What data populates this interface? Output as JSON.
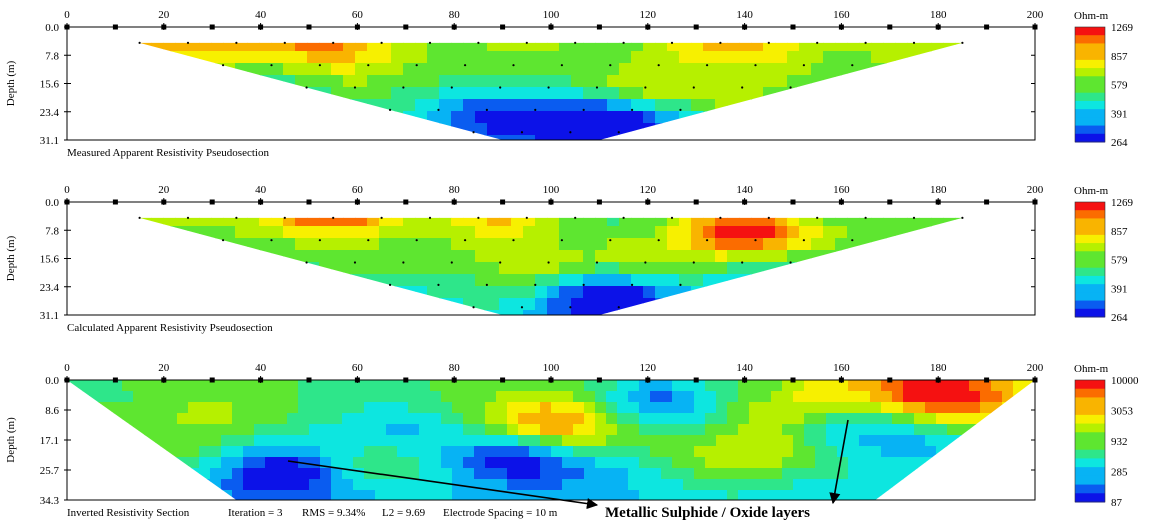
{
  "chart_data": [
    {
      "type": "heatmap",
      "title": "Measured Apparent Resistivity Pseudosection",
      "ylabel": "Depth (m)",
      "x_ticks": [
        0,
        20,
        40,
        60,
        80,
        100,
        120,
        140,
        160,
        180,
        200
      ],
      "y_ticks": [
        "0.0",
        "7.8",
        "15.6",
        "23.4",
        "31.1"
      ],
      "xlim": [
        0,
        200
      ],
      "ylim": [
        0,
        31.1
      ],
      "section_shape": "trapezoid",
      "section_top": [
        15,
        185
      ],
      "section_bottom": [
        90,
        110
      ],
      "colorbar": {
        "unit": "Ohm-m",
        "labels": [
          "1269",
          "857",
          "579",
          "391",
          "264"
        ]
      },
      "anomalies": [
        {
          "label": "high",
          "x": 55,
          "depth": 3,
          "value": 1269
        },
        {
          "label": "high",
          "x": 140,
          "depth": 8,
          "value": 1150
        },
        {
          "label": "high",
          "x": 30,
          "depth": 4,
          "value": 900
        },
        {
          "label": "low",
          "x": 110,
          "depth": 27,
          "value": 264
        },
        {
          "label": "low",
          "x": 85,
          "depth": 25,
          "value": 330
        }
      ]
    },
    {
      "type": "heatmap",
      "title": "Calculated Apparent Resistivity Pseudosection",
      "ylabel": "Depth (m)",
      "x_ticks": [
        0,
        20,
        40,
        60,
        80,
        100,
        120,
        140,
        160,
        180,
        200
      ],
      "y_ticks": [
        "0.0",
        "7.8",
        "15.6",
        "23.4",
        "31.1"
      ],
      "xlim": [
        0,
        200
      ],
      "ylim": [
        0,
        31.1
      ],
      "section_shape": "trapezoid",
      "section_top": [
        15,
        185
      ],
      "section_bottom": [
        90,
        110
      ],
      "colorbar": {
        "unit": "Ohm-m",
        "labels": [
          "1269",
          "857",
          "579",
          "391",
          "264"
        ]
      },
      "anomalies": [
        {
          "label": "high",
          "x": 55,
          "depth": 3,
          "value": 1269
        },
        {
          "label": "high",
          "x": 140,
          "depth": 8,
          "value": 1100
        },
        {
          "label": "high",
          "x": 90,
          "depth": 4,
          "value": 820
        },
        {
          "label": "low",
          "x": 110,
          "depth": 27,
          "value": 264
        }
      ]
    },
    {
      "type": "heatmap",
      "title": "Inverted Resistivity Section",
      "ylabel": "Depth (m)",
      "x_ticks": [
        0,
        20,
        40,
        60,
        80,
        100,
        120,
        140,
        160,
        180,
        200
      ],
      "y_ticks": [
        "0.0",
        "8.6",
        "17.1",
        "25.7",
        "34.3"
      ],
      "xlim": [
        0,
        200
      ],
      "ylim": [
        0,
        34.3
      ],
      "section_shape": "trapezoid",
      "section_top": [
        0,
        200
      ],
      "section_bottom": [
        35,
        167
      ],
      "stats": {
        "iteration": "Iteration = 3",
        "rms": "RMS = 9.34%",
        "l2": "L2 = 9.69",
        "spacing": "Electrode Spacing = 10 m"
      },
      "colorbar": {
        "unit": "Ohm-m",
        "labels": [
          "10000",
          "3053",
          "932",
          "285",
          "87"
        ]
      },
      "anomalies": [
        {
          "label": "low",
          "x": 45,
          "depth": 26,
          "value": 87
        },
        {
          "label": "low",
          "x": 160,
          "depth": 13,
          "value": 120
        },
        {
          "label": "low",
          "x": 122,
          "depth": 6,
          "value": 150
        },
        {
          "label": "high",
          "x": 185,
          "depth": 4,
          "value": 10000
        },
        {
          "label": "high",
          "x": 172,
          "depth": 3,
          "value": 6000
        },
        {
          "label": "high",
          "x": 100,
          "depth": 12,
          "value": 4500
        },
        {
          "label": "high",
          "x": 152,
          "depth": 7,
          "value": 5000
        }
      ]
    }
  ],
  "annotation": {
    "text": "Metallic Sulphide  / Oxide layers"
  }
}
